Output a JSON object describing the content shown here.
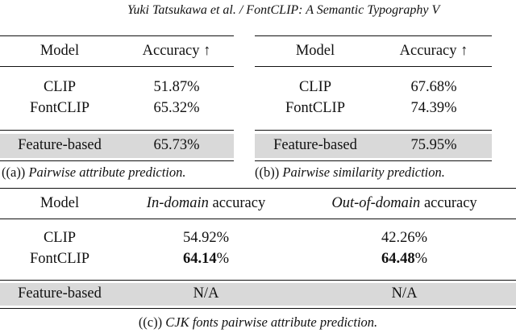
{
  "header": "Yuki Tatsukawa et al. / FontCLIP: A Semantic Typography V",
  "table_a": {
    "columns": [
      "Model",
      "Accuracy ↑"
    ],
    "rows": [
      {
        "model": "CLIP",
        "value": "51.87%"
      },
      {
        "model": "FontCLIP",
        "value": "65.32%"
      }
    ],
    "shaded_row": {
      "model": "Feature-based",
      "value": "65.73%"
    },
    "caption_label": "((a))",
    "caption_text": "Pairwise attribute prediction."
  },
  "table_b": {
    "columns": [
      "Model",
      "Accuracy ↑"
    ],
    "rows": [
      {
        "model": "CLIP",
        "value": "67.68%"
      },
      {
        "model": "FontCLIP",
        "value": "74.39%"
      }
    ],
    "shaded_row": {
      "model": "Feature-based",
      "value": "75.95%"
    },
    "caption_label": "((b))",
    "caption_text": "Pairwise similarity prediction."
  },
  "table_c": {
    "col_model": "Model",
    "col_in_italic": "In-domain",
    "col_in_rest": " accuracy",
    "col_out_italic": "Out-of-domain",
    "col_out_rest": " accuracy",
    "rows": [
      {
        "model": "CLIP",
        "in_bold": "",
        "in_rest": "54.92%",
        "out_bold": "",
        "out_rest": "42.26%"
      },
      {
        "model": "FontCLIP",
        "in_bold": "64.14",
        "in_rest": "%",
        "out_bold": "64.48",
        "out_rest": "%"
      }
    ],
    "shaded_row": {
      "model": "Feature-based",
      "in": "N/A",
      "out": "N/A"
    },
    "caption_label": "((c))",
    "caption_text": "CJK fonts pairwise attribute prediction."
  }
}
